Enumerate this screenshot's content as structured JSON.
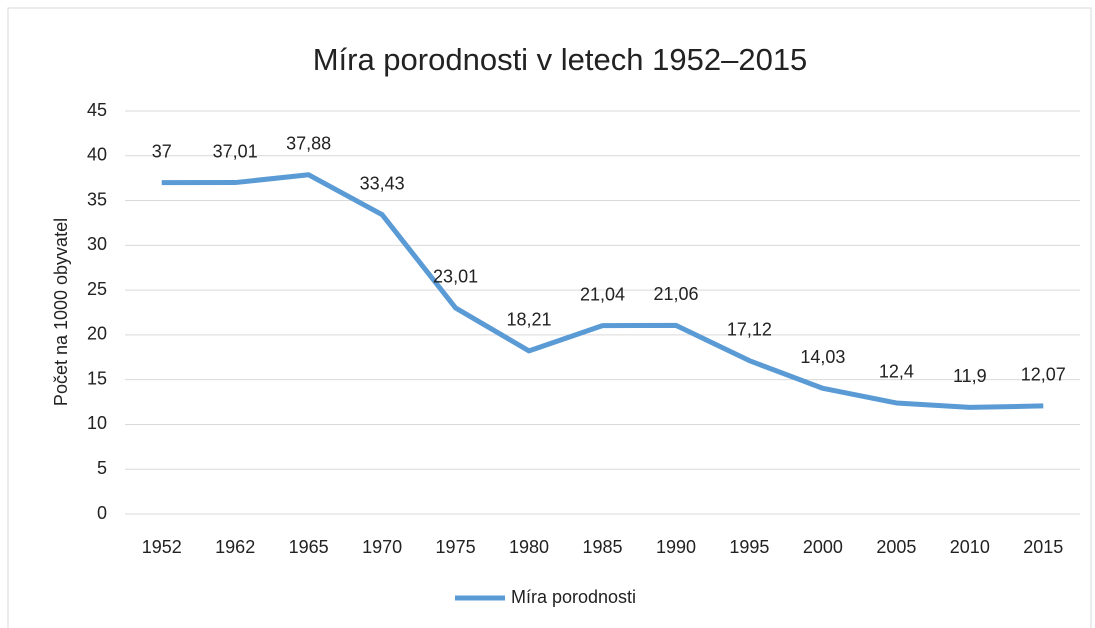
{
  "chart_data": {
    "type": "line",
    "title": "Míra porodnosti v letech 1952–2015",
    "y_label": "Počet na 1000 obyvatel",
    "categories": [
      "1952",
      "1962",
      "1965",
      "1970",
      "1975",
      "1980",
      "1985",
      "1990",
      "1995",
      "2000",
      "2005",
      "2010",
      "2015"
    ],
    "series": [
      {
        "name": "Míra porodnosti",
        "color": "#5b9bd5",
        "values": [
          37,
          37.01,
          37.88,
          33.43,
          23.01,
          18.21,
          21.04,
          21.06,
          17.12,
          14.03,
          12.4,
          11.9,
          12.07
        ],
        "value_labels": [
          "37",
          "37,01",
          "37,88",
          "33,43",
          "23,01",
          "18,21",
          "21,04",
          "21,06",
          "17,12",
          "14,03",
          "12,4",
          "11,9",
          "12,07"
        ]
      }
    ],
    "ylim": [
      0,
      45
    ],
    "yticks": [
      0,
      5,
      10,
      15,
      20,
      25,
      30,
      35,
      40,
      45
    ],
    "grid": true,
    "legend": "bottom"
  }
}
